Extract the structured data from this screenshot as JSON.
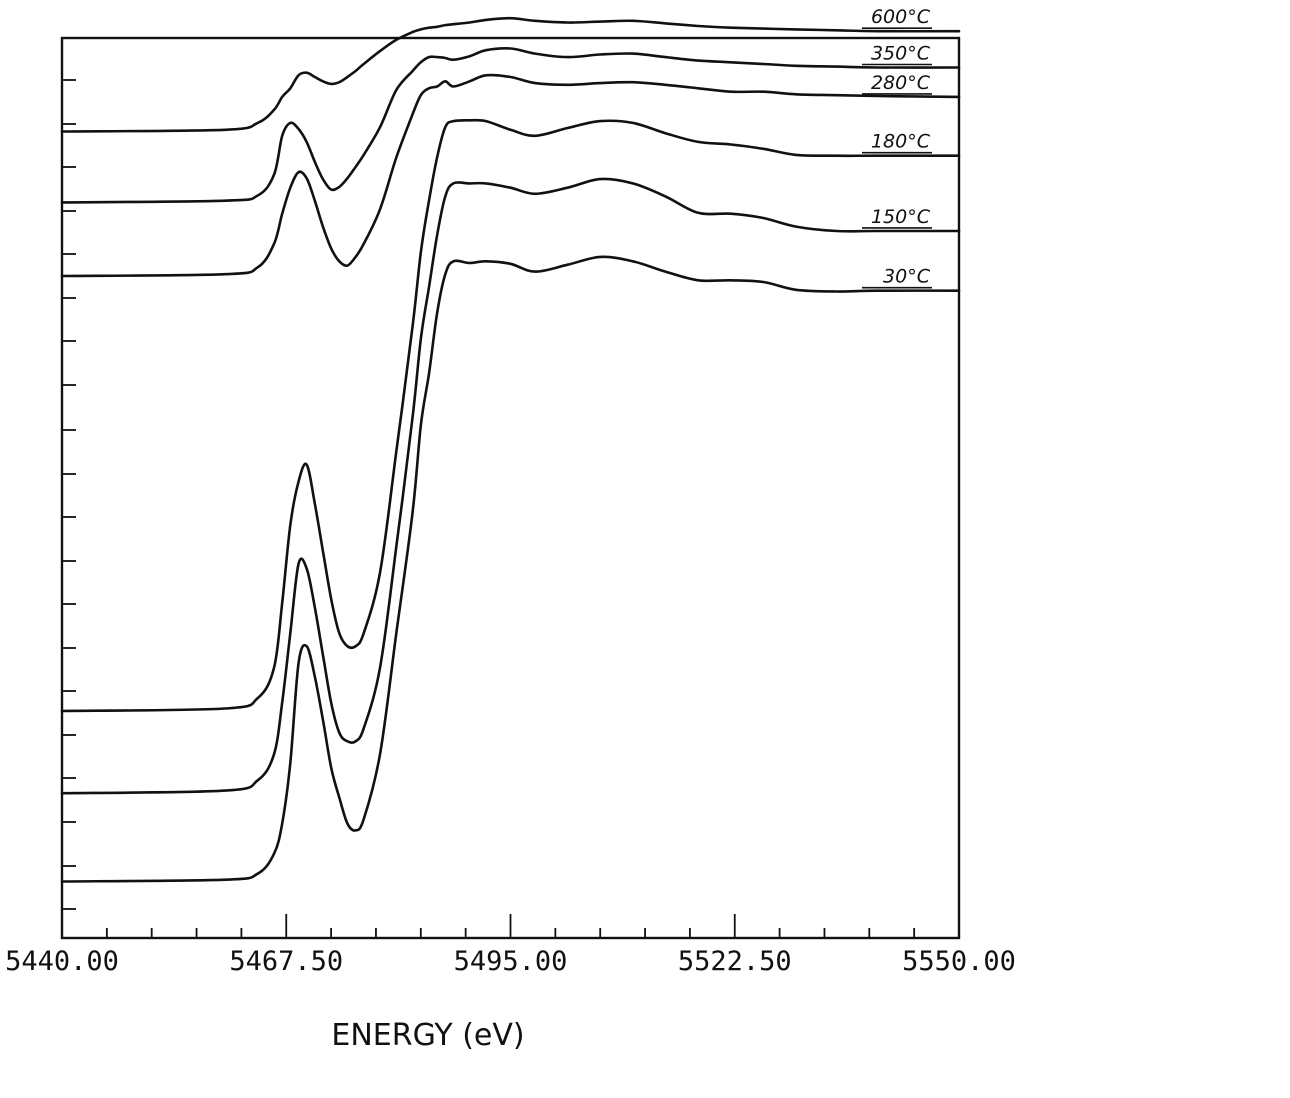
{
  "chart_data": {
    "type": "line",
    "xlabel": "ENERGY (eV)",
    "ylabel": "",
    "xlim": [
      5440.0,
      5550.0
    ],
    "x_tick_labels": [
      "5440.00",
      "5467.50",
      "5495.00",
      "5522.50",
      "5550.00"
    ],
    "x_tick_values": [
      5440.0,
      5467.5,
      5495.0,
      5522.5,
      5550.0
    ],
    "ylim": [
      0,
      100
    ],
    "grid": false,
    "series": [
      {
        "name": "30°C",
        "x": [
          5440,
          5460,
          5464,
          5466,
          5467,
          5468,
          5469,
          5470,
          5471,
          5472,
          5473,
          5474,
          5475,
          5476,
          5477,
          5479,
          5481,
          5483,
          5484,
          5485,
          5486,
          5487,
          5488,
          5490,
          5492,
          5495,
          5498,
          5502,
          5506,
          5510,
          5514,
          5518,
          5522,
          5526,
          5530,
          5535,
          5540,
          5550
        ],
        "y": [
          3.3,
          3.5,
          4.2,
          6.5,
          10.0,
          17.0,
          28.5,
          30.5,
          27.0,
          22.0,
          16.5,
          13.0,
          10.0,
          9.2,
          10.5,
          18.0,
          32.0,
          46.0,
          56.0,
          62.0,
          69.0,
          73.5,
          75.0,
          74.8,
          75.0,
          74.7,
          73.8,
          74.6,
          75.5,
          75.0,
          73.8,
          72.8,
          72.8,
          72.6,
          71.7,
          71.5,
          71.6,
          71.6
        ]
      },
      {
        "name": "150°C",
        "x": [
          5440,
          5460,
          5464,
          5466,
          5467,
          5468,
          5469,
          5470,
          5471,
          5472,
          5473,
          5474,
          5475,
          5476,
          5477,
          5479,
          5481,
          5483,
          5484,
          5485,
          5486,
          5487,
          5488,
          5490,
          5492,
          5495,
          5498,
          5502,
          5506,
          5510,
          5514,
          5518,
          5522,
          5526,
          5530,
          5535,
          5540,
          5550
        ],
        "y": [
          13.5,
          13.8,
          15.0,
          18.0,
          24.0,
          32.0,
          40.0,
          39.5,
          35.0,
          29.5,
          24.0,
          20.5,
          19.5,
          19.5,
          21.0,
          28.0,
          42.0,
          57.0,
          66.0,
          72.0,
          78.0,
          82.5,
          84.0,
          84.0,
          84.0,
          83.5,
          82.8,
          83.5,
          84.5,
          84.0,
          82.5,
          80.6,
          80.5,
          80.0,
          79.0,
          78.5,
          78.5,
          78.5
        ]
      },
      {
        "name": "180°C",
        "x": [
          5440,
          5460,
          5464,
          5466,
          5467,
          5468,
          5469,
          5470,
          5471,
          5472,
          5473,
          5474,
          5475,
          5476,
          5477,
          5479,
          5481,
          5483,
          5484,
          5485,
          5486,
          5487,
          5488,
          5490,
          5492,
          5495,
          5498,
          5502,
          5506,
          5510,
          5514,
          5518,
          5522,
          5526,
          5530,
          5535,
          5540,
          5550
        ],
        "y": [
          23.0,
          23.3,
          24.5,
          28.0,
          35.5,
          44.5,
          49.5,
          51.5,
          47.0,
          41.5,
          36.0,
          32.0,
          30.5,
          30.5,
          32.0,
          39.0,
          53.0,
          67.5,
          76.0,
          82.0,
          87.0,
          90.5,
          91.2,
          91.3,
          91.2,
          90.2,
          89.5,
          90.4,
          91.2,
          91.0,
          89.8,
          88.8,
          88.5,
          88.0,
          87.3,
          87.2,
          87.2,
          87.2
        ]
      },
      {
        "name": "280°C",
        "x": [
          5440,
          5460,
          5464,
          5466,
          5467,
          5468,
          5469,
          5470,
          5471,
          5472,
          5473,
          5474,
          5475,
          5476,
          5477,
          5479,
          5481,
          5483,
          5484,
          5485,
          5486,
          5487,
          5488,
          5490,
          5492,
          5495,
          5498,
          5502,
          5506,
          5510,
          5514,
          5518,
          5522,
          5526,
          5530,
          5535,
          5540,
          5550
        ],
        "y": [
          73.3,
          73.5,
          74.3,
          77.0,
          80.5,
          83.5,
          85.3,
          84.6,
          82.0,
          79.0,
          76.5,
          75.0,
          74.5,
          75.5,
          77.0,
          81.0,
          87.0,
          92.0,
          94.2,
          95.0,
          95.2,
          95.8,
          95.2,
          95.8,
          96.5,
          96.3,
          95.6,
          95.4,
          95.6,
          95.7,
          95.4,
          95.0,
          94.6,
          94.6,
          94.3,
          94.2,
          94.1,
          94.0
        ]
      },
      {
        "name": "350°C",
        "x": [
          5440,
          5460,
          5464,
          5466,
          5467,
          5468,
          5469,
          5470,
          5471,
          5472,
          5473,
          5474,
          5475,
          5476,
          5477,
          5479,
          5481,
          5483,
          5484,
          5485,
          5486,
          5487,
          5488,
          5490,
          5492,
          5495,
          5498,
          5502,
          5506,
          5510,
          5514,
          5518,
          5522,
          5526,
          5530,
          5535,
          5540,
          5550
        ],
        "y": [
          81.8,
          82.0,
          82.6,
          85.0,
          89.5,
          91.0,
          90.3,
          88.8,
          86.5,
          84.5,
          83.3,
          83.6,
          84.6,
          85.9,
          87.3,
          90.5,
          94.8,
          97.0,
          98.0,
          98.6,
          98.6,
          98.5,
          98.3,
          98.7,
          99.4,
          99.6,
          99.0,
          98.6,
          98.9,
          99.0,
          98.6,
          98.2,
          98.0,
          97.8,
          97.6,
          97.5,
          97.4,
          97.4
        ]
      },
      {
        "name": "600°C",
        "x": [
          5440,
          5460,
          5464,
          5466,
          5467,
          5468,
          5469,
          5470,
          5471,
          5472,
          5473,
          5474,
          5475,
          5476,
          5477,
          5479,
          5481,
          5483,
          5484,
          5485,
          5486,
          5487,
          5488,
          5490,
          5492,
          5495,
          5498,
          5502,
          5506,
          5510,
          5514,
          5518,
          5522,
          5526,
          5530,
          5535,
          5540,
          5550
        ],
        "y": [
          90.0,
          90.2,
          91.0,
          92.5,
          94.0,
          95.0,
          96.5,
          96.8,
          96.3,
          95.8,
          95.5,
          95.7,
          96.3,
          97.0,
          97.8,
          99.3,
          100.6,
          101.5,
          101.8,
          102.0,
          102.1,
          102.3,
          102.4,
          102.6,
          102.9,
          103.1,
          102.8,
          102.6,
          102.7,
          102.8,
          102.5,
          102.2,
          102.0,
          101.9,
          101.8,
          101.7,
          101.6,
          101.6
        ]
      }
    ],
    "series_label_text": [
      "600°C",
      "350°C",
      "280°C",
      "180°C",
      "150°C",
      "30°C"
    ]
  }
}
